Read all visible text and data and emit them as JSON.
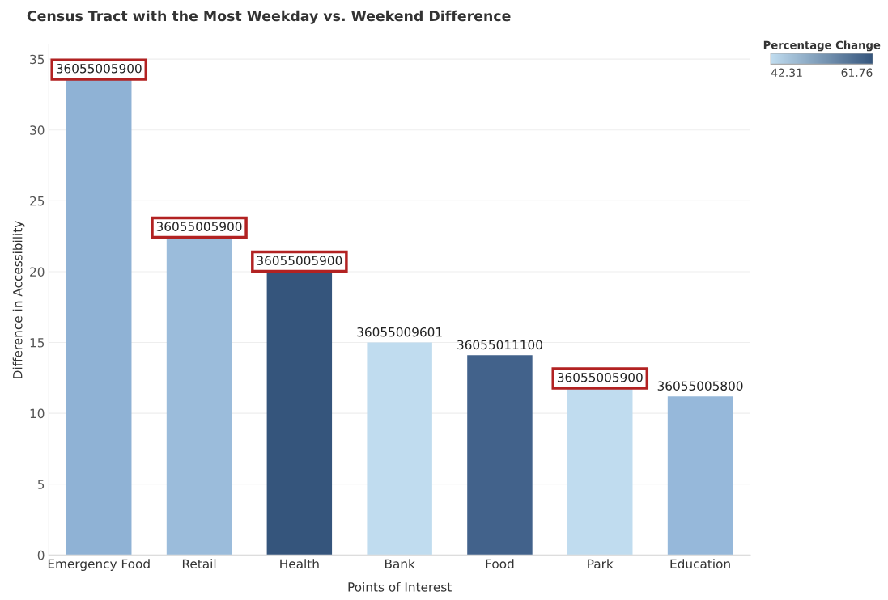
{
  "chart_data": {
    "type": "bar",
    "title": "Census Tract with the Most Weekday vs. Weekend Difference",
    "xlabel": "Points of Interest",
    "ylabel": "Difference in Accessibility",
    "categories": [
      "Emergency Food",
      "Retail",
      "Health",
      "Bank",
      "Food",
      "Park",
      "Education"
    ],
    "values": [
      33.6,
      22.45,
      20.05,
      15.0,
      14.1,
      11.8,
      11.2
    ],
    "colors": [
      "#8fb2d5",
      "#9bbcdb",
      "#35557c",
      "#c0dcef",
      "#42628b",
      "#c0dcef",
      "#96b8da"
    ],
    "annotations": [
      {
        "text": "36055005900",
        "x": "Emergency Food",
        "y": 33.6
      },
      {
        "text": "36055005900",
        "x": "Retail",
        "y": 22.45
      },
      {
        "text": "36055005900",
        "x": "Health",
        "y": 20.05
      },
      {
        "text": "36055009601",
        "x": "Bank",
        "y": 15.0
      },
      {
        "text": "36055011100",
        "x": "Food",
        "y": 14.1
      },
      {
        "text": "36055005900",
        "x": "Park",
        "y": 11.8
      },
      {
        "text": "36055005800",
        "x": "Education",
        "y": 11.2
      }
    ],
    "ylim": [
      0,
      36
    ],
    "yticks": [
      0,
      5,
      10,
      15,
      20,
      25,
      30,
      35
    ],
    "grid": "y",
    "legend_title": "Percentage Change",
    "clim": [
      42.31,
      61.76
    ],
    "cticks": [
      42.31,
      61.76
    ]
  }
}
